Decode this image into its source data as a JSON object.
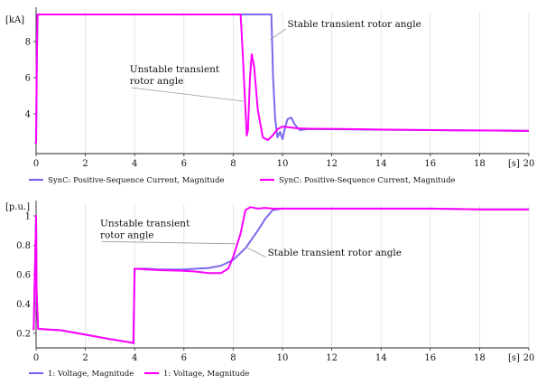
{
  "chart_data": [
    {
      "type": "line",
      "title": "",
      "xlabel": "[s]",
      "ylabel": "[kA]",
      "xlim": [
        0,
        20
      ],
      "ylim": [
        1.8,
        9.7
      ],
      "xticks": [
        0,
        2,
        4,
        6,
        8,
        10,
        12,
        14,
        16,
        18,
        20
      ],
      "yticks": [
        4,
        6,
        8
      ],
      "grid": "x-only",
      "legend_position": "bottom",
      "series": [
        {
          "name": "SynC: Positive-Sequence Current, Magnitude",
          "color": "#7b68ee",
          "x": [
            -0.05,
            0.0,
            0.03,
            0.06,
            0.1,
            9.55,
            9.62,
            9.7,
            9.8,
            9.9,
            10.0,
            10.1,
            10.2,
            10.35,
            10.5,
            10.7,
            11.0,
            11.5,
            12,
            14,
            16,
            18,
            20
          ],
          "y": [
            2.4,
            2.4,
            7.0,
            9.5,
            9.5,
            9.5,
            6.0,
            3.8,
            2.7,
            3.0,
            2.6,
            3.2,
            3.7,
            3.8,
            3.4,
            3.1,
            3.15,
            3.15,
            3.15,
            3.12,
            3.1,
            3.08,
            3.05
          ]
        },
        {
          "name": "SynC: Positive-Sequence Current, Magnitude",
          "color": "#ff00ff",
          "x": [
            -0.05,
            0.0,
            0.03,
            0.06,
            0.1,
            8.3,
            8.33,
            8.4,
            8.5,
            8.55,
            8.6,
            8.68,
            8.75,
            8.85,
            9.0,
            9.2,
            9.4,
            9.6,
            9.8,
            10.0,
            10.3,
            10.6,
            11.0,
            12,
            14,
            16,
            18,
            20
          ],
          "y": [
            2.4,
            2.4,
            7.0,
            9.5,
            9.5,
            9.5,
            8.8,
            7.0,
            4.2,
            2.8,
            3.1,
            6.0,
            7.3,
            6.6,
            4.2,
            2.7,
            2.55,
            2.8,
            3.15,
            3.3,
            3.25,
            3.2,
            3.18,
            3.17,
            3.13,
            3.1,
            3.08,
            3.06
          ]
        }
      ],
      "annotations": [
        {
          "lines": [
            "Stable transient rotor angle"
          ],
          "text_x": 10.2,
          "text_y": 8.8,
          "target_x": 9.5,
          "target_y": 8.1
        },
        {
          "lines": [
            "Unstable transient",
            "rotor angle"
          ],
          "text_x": 3.8,
          "text_y": 6.3,
          "target_x": 8.4,
          "target_y": 4.7
        }
      ]
    },
    {
      "type": "line",
      "title": "",
      "xlabel": "[s]",
      "ylabel": "[p.u.]",
      "xlim": [
        0,
        20
      ],
      "ylim": [
        0.1,
        1.08
      ],
      "xticks": [
        0,
        2,
        4,
        6,
        8,
        10,
        12,
        14,
        16,
        18,
        20
      ],
      "yticks": [
        0.2,
        0.4,
        0.6,
        0.8,
        1
      ],
      "grid": "x-only",
      "legend_position": "bottom",
      "series": [
        {
          "name": "1: Voltage, Magnitude",
          "color": "#7b68ee",
          "x": [
            -0.1,
            0.0,
            0.02,
            0.08,
            0.5,
            1,
            2,
            3,
            3.9,
            3.95,
            4.0,
            4.5,
            5,
            6,
            6.5,
            7,
            7.5,
            8,
            8.5,
            9,
            9.3,
            9.6,
            10,
            12,
            14,
            16,
            18,
            20
          ],
          "y": [
            0.22,
            1.0,
            0.5,
            0.23,
            0.225,
            0.22,
            0.19,
            0.16,
            0.135,
            0.13,
            0.64,
            0.64,
            0.635,
            0.635,
            0.64,
            0.645,
            0.66,
            0.7,
            0.78,
            0.9,
            0.98,
            1.04,
            1.05,
            1.05,
            1.05,
            1.05,
            1.045,
            1.045
          ]
        },
        {
          "name": "1: Voltage, Magnitude",
          "color": "#ff00ff",
          "x": [
            -0.1,
            0.0,
            0.02,
            0.08,
            0.5,
            1,
            2,
            3,
            3.9,
            3.95,
            4.0,
            4.5,
            5,
            6,
            6.5,
            7,
            7.5,
            7.8,
            8.0,
            8.3,
            8.5,
            8.7,
            9.0,
            9.3,
            9.6,
            10,
            12,
            14,
            16,
            18,
            20
          ],
          "y": [
            0.22,
            1.0,
            0.5,
            0.23,
            0.225,
            0.22,
            0.19,
            0.16,
            0.135,
            0.13,
            0.64,
            0.635,
            0.63,
            0.625,
            0.62,
            0.61,
            0.61,
            0.64,
            0.72,
            0.88,
            1.04,
            1.06,
            1.05,
            1.055,
            1.05,
            1.05,
            1.05,
            1.05,
            1.05,
            1.045,
            1.045
          ]
        }
      ],
      "annotations": [
        {
          "lines": [
            "Unstable transient",
            "rotor angle"
          ],
          "text_x": 2.6,
          "text_y": 0.93,
          "target_x": 8.1,
          "target_y": 0.81
        },
        {
          "lines": [
            "Stable transient rotor angle"
          ],
          "text_x": 9.4,
          "text_y": 0.73,
          "target_x": 8.5,
          "target_y": 0.79
        }
      ]
    }
  ]
}
